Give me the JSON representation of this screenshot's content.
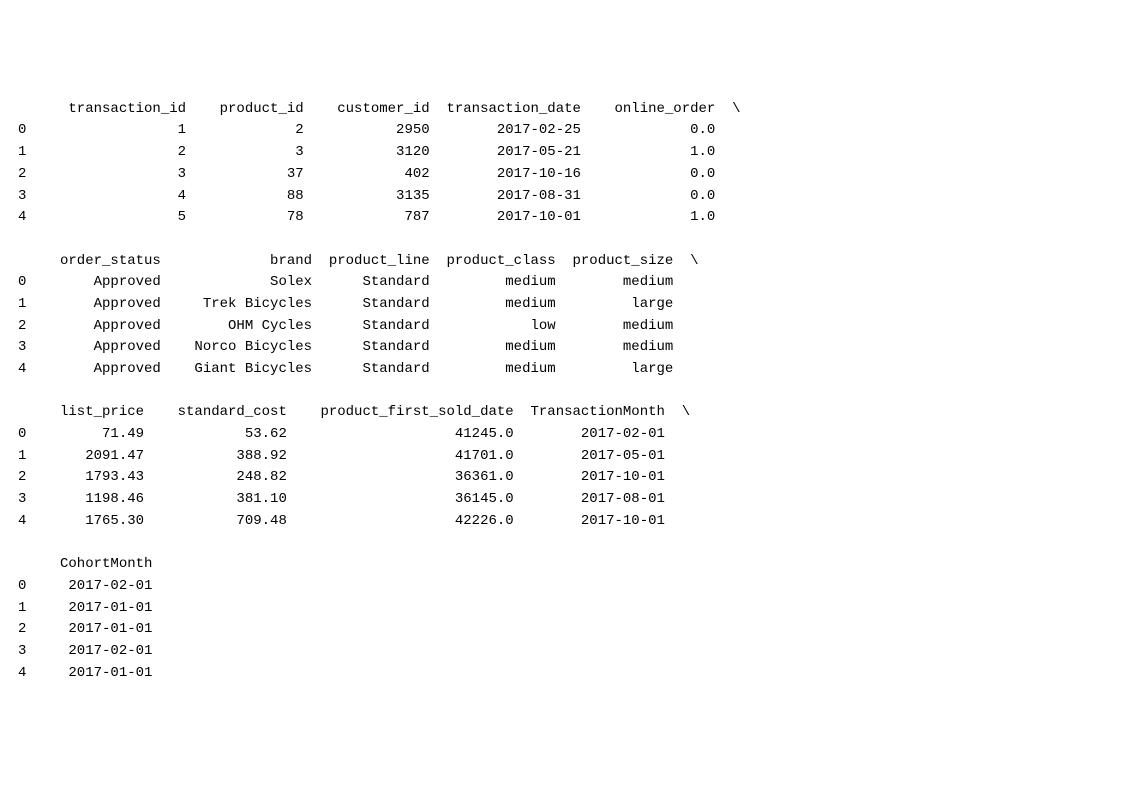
{
  "dataframe": {
    "type": "table",
    "font_family": "monospace",
    "font_size_pt": 11,
    "text_color": "#000000",
    "background_color": "#ffffff",
    "continuation_char": "\\",
    "index": [
      "0",
      "1",
      "2",
      "3",
      "4"
    ],
    "blocks": [
      {
        "columns": [
          "",
          "transaction_id",
          "product_id",
          "customer_id",
          "transaction_date",
          "online_order"
        ],
        "widths": [
          1,
          17,
          12,
          13,
          16,
          14
        ],
        "aligns": [
          "left",
          "right",
          "right",
          "right",
          "right",
          "right"
        ],
        "continuation": true,
        "rows": [
          [
            "0",
            "1",
            "2",
            "2950",
            "2017-02-25",
            "0.0"
          ],
          [
            "1",
            "2",
            "3",
            "3120",
            "2017-05-21",
            "1.0"
          ],
          [
            "2",
            "3",
            "37",
            "402",
            "2017-10-16",
            "0.0"
          ],
          [
            "3",
            "4",
            "88",
            "3135",
            "2017-08-31",
            "0.0"
          ],
          [
            "4",
            "5",
            "78",
            "787",
            "2017-10-01",
            "1.0"
          ]
        ]
      },
      {
        "columns": [
          "",
          "order_status",
          "brand",
          "product_line",
          "product_class",
          "product_size"
        ],
        "widths": [
          1,
          14,
          16,
          12,
          13,
          12
        ],
        "aligns": [
          "left",
          "right",
          "right",
          "right",
          "right",
          "right"
        ],
        "continuation": true,
        "rows": [
          [
            "0",
            "Approved",
            "Solex",
            "Standard",
            "medium",
            "medium"
          ],
          [
            "1",
            "Approved",
            "Trek Bicycles",
            "Standard",
            "medium",
            "large"
          ],
          [
            "2",
            "Approved",
            "OHM Cycles",
            "Standard",
            "low",
            "medium"
          ],
          [
            "3",
            "Approved",
            "Norco Bicycles",
            "Standard",
            "medium",
            "medium"
          ],
          [
            "4",
            "Approved",
            "Giant Bicycles",
            "Standard",
            "medium",
            "large"
          ]
        ]
      },
      {
        "columns": [
          "",
          "list_price",
          "standard_cost",
          "product_first_sold_date",
          "TransactionMonth"
        ],
        "widths": [
          1,
          12,
          15,
          25,
          16
        ],
        "aligns": [
          "left",
          "right",
          "right",
          "right",
          "right"
        ],
        "continuation": true,
        "rows": [
          [
            "0",
            "71.49",
            "53.62",
            "41245.0",
            "2017-02-01"
          ],
          [
            "1",
            "2091.47",
            "388.92",
            "41701.0",
            "2017-05-01"
          ],
          [
            "2",
            "1793.43",
            "248.82",
            "36361.0",
            "2017-10-01"
          ],
          [
            "3",
            "1198.46",
            "381.10",
            "36145.0",
            "2017-08-01"
          ],
          [
            "4",
            "1765.30",
            "709.48",
            "42226.0",
            "2017-10-01"
          ]
        ]
      },
      {
        "columns": [
          "",
          "CohortMonth"
        ],
        "widths": [
          1,
          13
        ],
        "aligns": [
          "left",
          "right"
        ],
        "continuation": false,
        "rows": [
          [
            "0",
            "2017-02-01"
          ],
          [
            "1",
            "2017-01-01"
          ],
          [
            "2",
            "2017-01-01"
          ],
          [
            "3",
            "2017-02-01"
          ],
          [
            "4",
            "2017-01-01"
          ]
        ]
      }
    ]
  }
}
